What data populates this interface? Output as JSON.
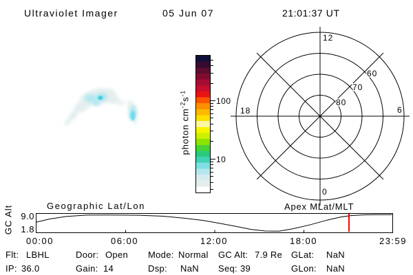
{
  "header": {
    "title": "Ultraviolet Imager",
    "date": "05 Jun 07",
    "time": "21:01:37 UT"
  },
  "colorbar": {
    "unit": {
      "prefix": "photon cm",
      "sup1": "-2",
      "mid": "s",
      "sup2": "-1"
    },
    "tick_100": "100",
    "tick_10": "10",
    "colors": [
      "#11103a",
      "#360b31",
      "#5c0d30",
      "#800d2e",
      "#a60d33",
      "#c90e2c",
      "#e81414",
      "#fb5500",
      "#fc9000",
      "#fdb900",
      "#fddf00",
      "#fcf8a0",
      "#f6f600",
      "#cdf000",
      "#8ce400",
      "#46d434",
      "#2aca7c",
      "#40d2b4",
      "#7ddfe2",
      "#b4e8ee",
      "#d6ebee",
      "#e4eded",
      "#ffffff"
    ]
  },
  "polar": {
    "hour_top": "12",
    "hour_left": "18",
    "hour_right": "6",
    "hour_bottom": "0",
    "ring_80": "80",
    "ring_70": "70",
    "ring_60": "60"
  },
  "timeline": {
    "title_left": "Geographic Lat/Lon",
    "title_right": "Apex MLat/MLT",
    "ylabel": "GC Alt",
    "y_max": "9.0",
    "y_min": "1.8",
    "xticks": [
      "00:00",
      "06:00",
      "12:00",
      "18:00",
      "23:59"
    ],
    "marker_frac": 0.876,
    "marker_color": "#ff0000",
    "curve_points": [
      [
        0,
        0.448
      ],
      [
        0.035,
        0.276
      ],
      [
        0.083,
        0.12
      ],
      [
        0.141,
        0.045
      ],
      [
        0.208,
        0.034
      ],
      [
        0.286,
        0.05
      ],
      [
        0.353,
        0.1
      ],
      [
        0.411,
        0.207
      ],
      [
        0.469,
        0.345
      ],
      [
        0.517,
        0.517
      ],
      [
        0.566,
        0.707
      ],
      [
        0.604,
        0.862
      ],
      [
        0.643,
        0.948
      ],
      [
        0.682,
        0.959
      ],
      [
        0.72,
        0.828
      ],
      [
        0.768,
        0.603
      ],
      [
        0.817,
        0.328
      ],
      [
        0.855,
        0.155
      ],
      [
        0.884,
        0.069
      ],
      [
        0.923,
        0.028
      ],
      [
        0.961,
        0.017
      ],
      [
        1,
        0.017
      ]
    ]
  },
  "status": {
    "flt_label": "Flt:",
    "flt_value": "LBHL",
    "door_label": "Door:",
    "door_value": "Open",
    "mode_label": "Mode:",
    "mode_value": "Normal",
    "gc_alt_label": "GC Alt:",
    "gc_alt_value": "7.9 Re",
    "glat_label": "GLat:",
    "glat_value": "NaN",
    "ip_label": "IP:",
    "ip_value": "36.0",
    "gain_label": "Gain:",
    "gain_value": "14",
    "dsp_label": "Dsp:",
    "dsp_value": "NaN",
    "seq_label": "Seq:",
    "seq_value": "39",
    "glon_label": "GLon:",
    "glon_value": "NaN"
  },
  "aurora": {
    "colors": {
      "faint": "#e3eeee",
      "soft": "#aee8f1",
      "bright": "#63dbee",
      "peak": "#12ccd6"
    }
  }
}
